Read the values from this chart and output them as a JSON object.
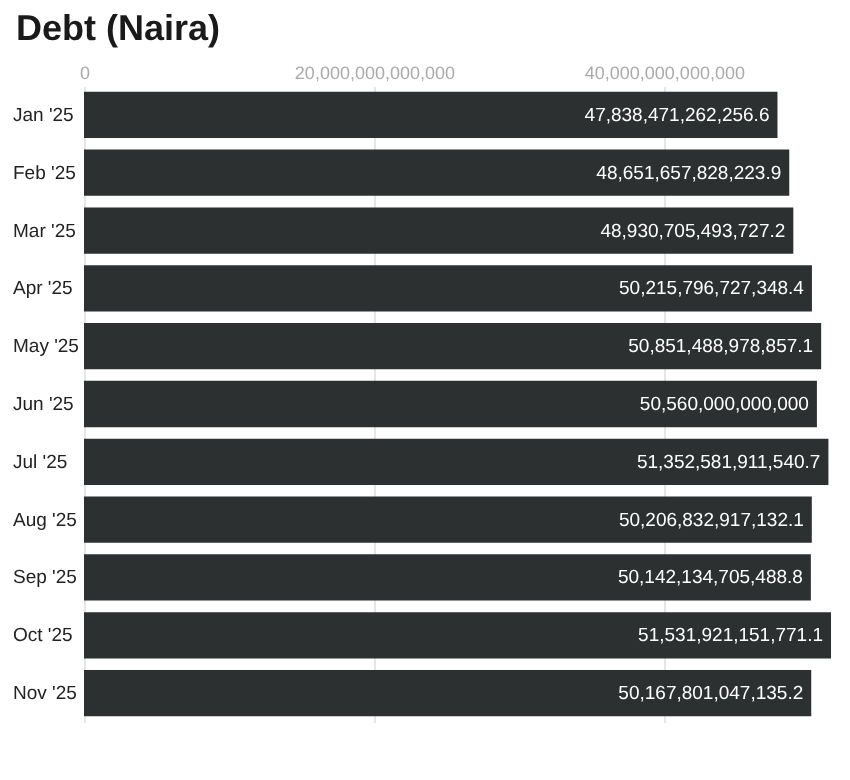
{
  "chart_data": {
    "type": "bar",
    "orientation": "horizontal",
    "title": "Debt (Naira)",
    "categories": [
      "Jan '25",
      "Feb '25",
      "Mar '25",
      "Apr '25",
      "May '25",
      "Jun '25",
      "Jul '25",
      "Aug '25",
      "Sep '25",
      "Oct '25",
      "Nov '25"
    ],
    "values": [
      47838471262256.6,
      48651657828223.9,
      48930705493727.2,
      50215796727348.4,
      50851488978857.1,
      50560000000000,
      51352581911540.7,
      50206832917132.1,
      50142134705488.8,
      51531921151771.1,
      50167801047135.2
    ],
    "value_labels": [
      "47,838,471,262,256.6",
      "48,651,657,828,223.9",
      "48,930,705,493,727.2",
      "50,215,796,727,348.4",
      "50,851,488,978,857.1",
      "50,560,000,000,000",
      "51,352,581,911,540.7",
      "50,206,832,917,132.1",
      "50,142,134,705,488.8",
      "51,531,921,151,771.1",
      "50,167,801,047,135.2"
    ],
    "color": "#2d3031",
    "xlim": [
      0,
      51600000000000
    ],
    "xticks": [
      {
        "value": 0,
        "label": "0"
      },
      {
        "value": 20000000000000,
        "label": "20,000,000,000,000"
      },
      {
        "value": 40000000000000,
        "label": "40,000,000,000,000"
      }
    ],
    "grid": "x"
  }
}
